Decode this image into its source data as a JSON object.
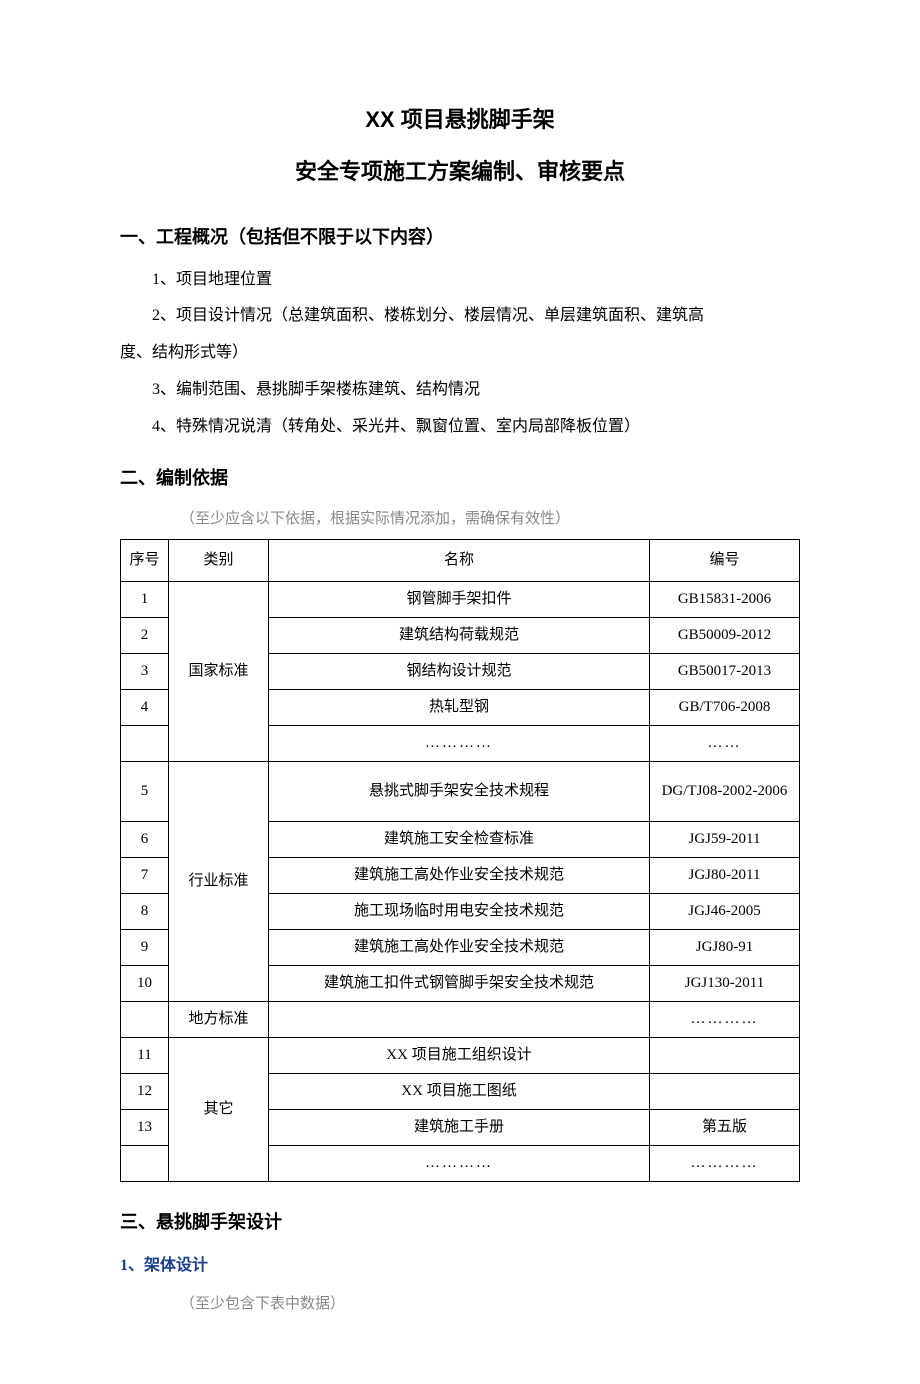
{
  "title_main": "XX 项目悬挑脚手架",
  "title_sub": "安全专项施工方案编制、审核要点",
  "section1": {
    "heading": "一、工程概况（包括但不限于以下内容）",
    "item1": "1、项目地理位置",
    "item2": "2、项目设计情况（总建筑面积、楼栋划分、楼层情况、单层建筑面积、建筑高",
    "item2_cont": "度、结构形式等）",
    "item3": "3、编制范围、悬挑脚手架楼栋建筑、结构情况",
    "item4": "4、特殊情况说清（转角处、采光井、飘窗位置、室内局部降板位置）"
  },
  "section2": {
    "heading": "二、编制依据",
    "note": "（至少应含以下依据，根据实际情况添加，需确保有效性）",
    "table": {
      "headers": {
        "seq": "序号",
        "category": "类别",
        "name": "名称",
        "code": "编号"
      },
      "categories": {
        "national": "国家标准",
        "industry": "行业标准",
        "local": "地方标准",
        "other": "其它"
      },
      "rows": [
        {
          "seq": "1",
          "name": "钢管脚手架扣件",
          "code": "GB15831-2006"
        },
        {
          "seq": "2",
          "name": "建筑结构荷载规范",
          "code": "GB50009-2012"
        },
        {
          "seq": "3",
          "name": "钢结构设计规范",
          "code": "GB50017-2013"
        },
        {
          "seq": "4",
          "name": "热轧型钢",
          "code": "GB/T706-2008"
        },
        {
          "seq": "",
          "name": "…………",
          "code": "……"
        },
        {
          "seq": "5",
          "name": "悬挑式脚手架安全技术规程",
          "code": "DG/TJ08-2002-2006"
        },
        {
          "seq": "6",
          "name": "建筑施工安全检查标准",
          "code": "JGJ59-2011"
        },
        {
          "seq": "7",
          "name": "建筑施工高处作业安全技术规范",
          "code": "JGJ80-2011"
        },
        {
          "seq": "8",
          "name": "施工现场临时用电安全技术规范",
          "code": "JGJ46-2005"
        },
        {
          "seq": "9",
          "name": "建筑施工高处作业安全技术规范",
          "code": "JGJ80-91"
        },
        {
          "seq": "10",
          "name": "建筑施工扣件式钢管脚手架安全技术规范",
          "code": "JGJ130-2011"
        },
        {
          "seq": "",
          "name": "",
          "code": "…………"
        },
        {
          "seq": "11",
          "name": "XX 项目施工组织设计",
          "code": ""
        },
        {
          "seq": "12",
          "name": "XX 项目施工图纸",
          "code": ""
        },
        {
          "seq": "13",
          "name": "建筑施工手册",
          "code": "第五版"
        },
        {
          "seq": "",
          "name": "…………",
          "code": "…………"
        }
      ]
    }
  },
  "section3": {
    "heading": "三、悬挑脚手架设计",
    "sub1": "1、架体设计",
    "note": "（至少包含下表中数据）"
  }
}
